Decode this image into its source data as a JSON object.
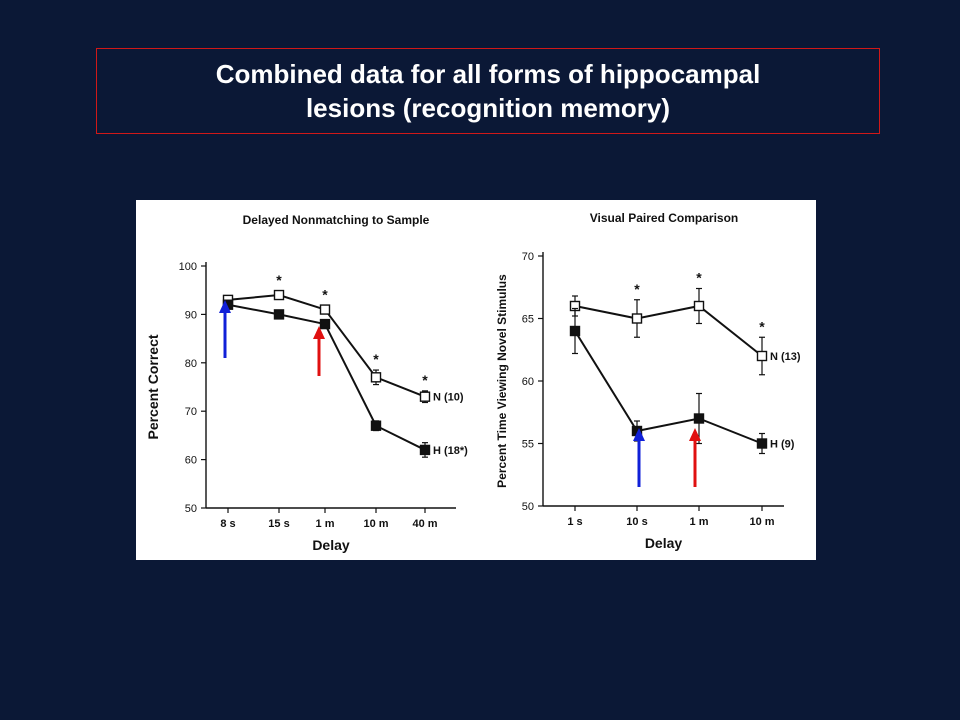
{
  "slide": {
    "title_line1": "Combined data for all forms of hippocampal",
    "title_line2": "lesions (recognition memory)"
  },
  "colors": {
    "background": "#0b1836",
    "title_border": "#d01818",
    "arrow_blue": "#1020d8",
    "arrow_red": "#e01010"
  },
  "chart_data": [
    {
      "type": "line",
      "title": "Delayed Nonmatching to Sample",
      "xlabel": "Delay",
      "ylabel": "Percent Correct",
      "categories": [
        "8 s",
        "15 s",
        "1 m",
        "10 m",
        "40 m"
      ],
      "yticks": [
        "50",
        "60",
        "70",
        "80",
        "90",
        "100"
      ],
      "ylim": [
        50,
        100
      ],
      "series": [
        {
          "name": "N (10)",
          "marker": "open-square",
          "values": [
            93,
            94,
            91,
            77,
            73
          ],
          "errors": [
            0.8,
            0.8,
            0.8,
            1.5,
            1.2
          ]
        },
        {
          "name": "H (18*)",
          "marker": "filled-square",
          "values": [
            92,
            90,
            88,
            67,
            62
          ],
          "errors": [
            0.8,
            0.8,
            0.8,
            1.0,
            1.5
          ]
        }
      ],
      "significance": [
        "",
        "*",
        "*",
        "*",
        "*"
      ],
      "arrows": [
        {
          "color": "blue",
          "category": "8 s"
        },
        {
          "color": "red",
          "category": "1 m"
        }
      ]
    },
    {
      "type": "line",
      "title": "Visual Paired Comparison",
      "xlabel": "Delay",
      "ylabel": "Percent Time Viewing Novel Stimulus",
      "categories": [
        "1 s",
        "10 s",
        "1 m",
        "10 m"
      ],
      "yticks": [
        "50",
        "55",
        "60",
        "65",
        "70"
      ],
      "ylim": [
        50,
        70
      ],
      "series": [
        {
          "name": "N (13)",
          "marker": "open-square",
          "values": [
            66,
            65,
            66,
            62
          ],
          "errors": [
            0.8,
            1.5,
            1.4,
            1.5
          ]
        },
        {
          "name": "H (9)",
          "marker": "filled-square",
          "values": [
            64,
            56,
            57,
            55
          ],
          "errors": [
            1.8,
            0.8,
            2.0,
            0.8
          ]
        }
      ],
      "significance": [
        "",
        "*",
        "*",
        "*"
      ],
      "arrows": [
        {
          "color": "blue",
          "category": "10 s"
        },
        {
          "color": "red",
          "category": "1 m"
        }
      ]
    }
  ]
}
